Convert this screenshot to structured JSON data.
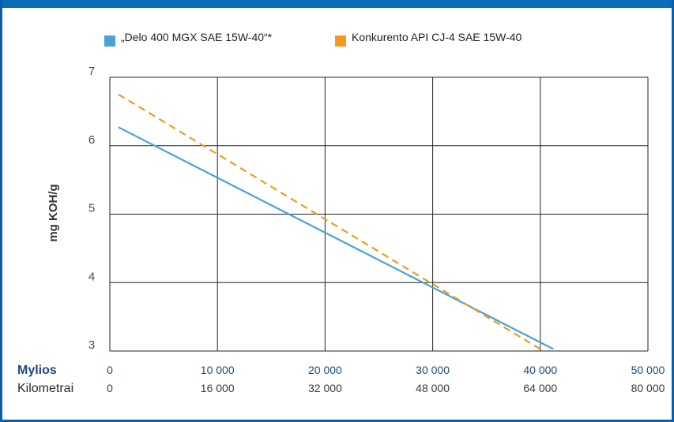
{
  "chart_data": {
    "type": "line",
    "title": "",
    "ylabel": "mg KOH/g",
    "ylim": [
      3,
      7
    ],
    "yticks": [
      "3",
      "4",
      "5",
      "6",
      "7"
    ],
    "xlim": [
      0,
      50000
    ],
    "x_axis_rows": [
      {
        "label": "Mylios",
        "ticks": [
          "0",
          "10 000",
          "20 000",
          "30 000",
          "40 000",
          "50 000"
        ]
      },
      {
        "label": "Kilometrai",
        "ticks": [
          "0",
          "16 000",
          "32 000",
          "48 000",
          "64 000",
          "80 000"
        ]
      }
    ],
    "grid": true,
    "legend_position": "top",
    "series": [
      {
        "name": "„Delo 400 MGX SAE 15W-40“*",
        "color": "#4aa3d4",
        "style": "solid",
        "x": [
          800,
          41200
        ],
        "y": [
          6.27,
          3.03
        ]
      },
      {
        "name": "Konkurento API CJ-4 SAE 15W-40",
        "color": "#f39a1e",
        "style": "dashed",
        "x": [
          800,
          40300
        ],
        "y": [
          6.75,
          3.0
        ]
      }
    ]
  },
  "colors": {
    "frame": "#0a5fa8",
    "grid": "#222222"
  }
}
